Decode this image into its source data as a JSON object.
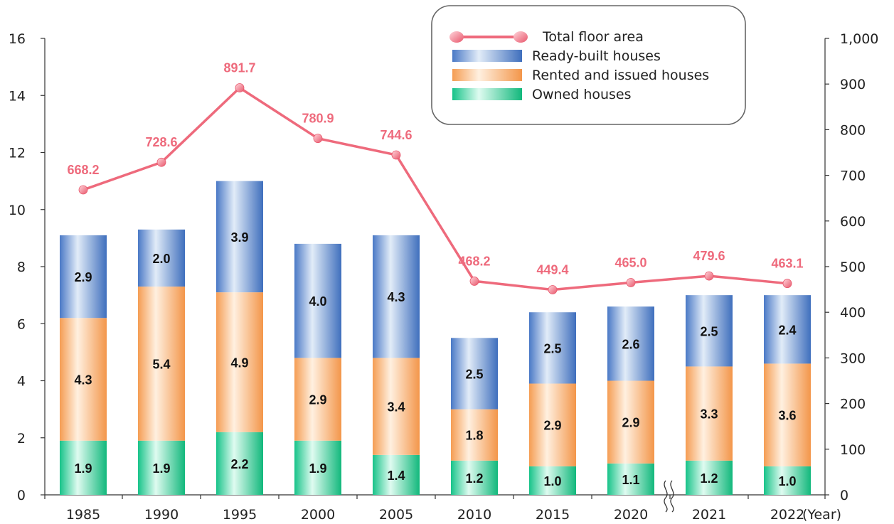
{
  "colors": {
    "owned": "#1ec98e",
    "rented": "#f7a45c",
    "ready": "#4f7fc9",
    "line": "#ee6a7c"
  },
  "chart_data": {
    "type": "bar",
    "stacked": true,
    "categories": [
      "1985",
      "1990",
      "1995",
      "2000",
      "2005",
      "2010",
      "2015",
      "2020",
      "2021",
      "2022"
    ],
    "axis_break_after": "2020",
    "x_unit_label": "(Year)",
    "ylim_left": [
      0,
      16
    ],
    "yticks_left": [
      "0",
      "2",
      "4",
      "6",
      "8",
      "10",
      "12",
      "14",
      "16"
    ],
    "ylim_right": [
      0,
      1000
    ],
    "yticks_right": [
      "0",
      "100",
      "200",
      "300",
      "400",
      "500",
      "600",
      "700",
      "800",
      "900",
      "1,000"
    ],
    "series": [
      {
        "name": "Owned houses",
        "key": "owned",
        "values": [
          1.9,
          1.9,
          2.2,
          1.9,
          1.4,
          1.2,
          1.0,
          1.1,
          1.2,
          1.0
        ],
        "labels": [
          "1.9",
          "1.9",
          "2.2",
          "1.9",
          "1.4",
          "1.2",
          "1.0",
          "1.1",
          "1.2",
          "1.0"
        ]
      },
      {
        "name": "Rented and issued houses",
        "key": "rented",
        "values": [
          4.3,
          5.4,
          4.9,
          2.9,
          3.4,
          1.8,
          2.9,
          2.9,
          3.3,
          3.6
        ],
        "labels": [
          "4.3",
          "5.4",
          "4.9",
          "2.9",
          "3.4",
          "1.8",
          "2.9",
          "2.9",
          "3.3",
          "3.6"
        ]
      },
      {
        "name": "Ready-built houses",
        "key": "ready",
        "values": [
          2.9,
          2.0,
          3.9,
          4.0,
          4.3,
          2.5,
          2.5,
          2.6,
          2.5,
          2.4
        ],
        "labels": [
          "2.9",
          "2.0",
          "3.9",
          "4.0",
          "4.3",
          "2.5",
          "2.5",
          "2.6",
          "2.5",
          "2.4"
        ]
      }
    ],
    "line_series": {
      "name": "Total floor area",
      "axis": "right",
      "values": [
        668.2,
        728.6,
        891.7,
        780.9,
        744.6,
        468.2,
        449.4,
        465.0,
        479.6,
        463.1
      ],
      "labels": [
        "668.2",
        "728.6",
        "891.7",
        "780.9",
        "744.6",
        "468.2",
        "449.4",
        "465.0",
        "479.6",
        "463.1"
      ]
    },
    "legend": {
      "placement": "top-right",
      "items": [
        "Total floor area",
        "Ready-built houses",
        "Rented and issued houses",
        "Owned houses"
      ]
    },
    "grid": false
  }
}
